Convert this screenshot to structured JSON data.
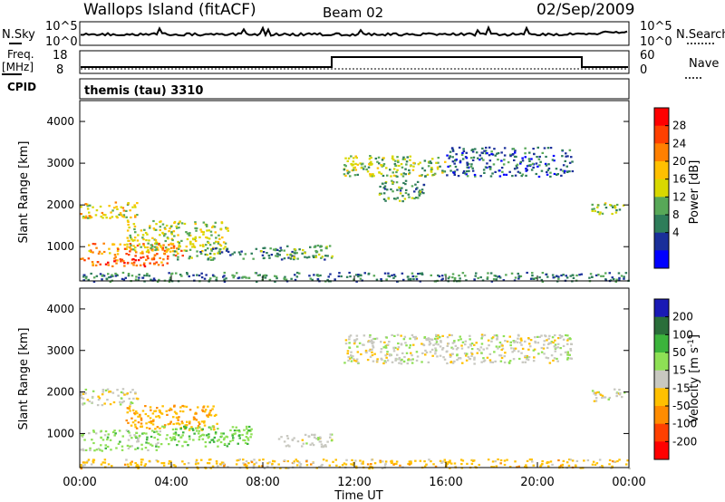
{
  "header": {
    "station": "Wallops Island (fitACF)",
    "beam": "Beam 02",
    "date": "02/Sep/2009"
  },
  "strip_panels": {
    "nsky": {
      "label": "N.Sky",
      "ticks": [
        "10^5",
        "10^0"
      ],
      "right_label": "N.Search",
      "right_ticks": [
        "10^5",
        "10^0"
      ]
    },
    "freq": {
      "label_line1": "Freq.",
      "label_line2": "[MHz]",
      "ticks": [
        "18",
        "8"
      ],
      "right_label": "Nave",
      "right_ticks": [
        "60",
        "0"
      ]
    },
    "cpid": {
      "label": "CPID",
      "program": "themis (tau) 3310"
    }
  },
  "colorbars": {
    "power": {
      "label": "Power [dB]",
      "ticks": [
        "28",
        "24",
        "20",
        "16",
        "12",
        "8",
        "4"
      ],
      "colors": [
        "#ff0000",
        "#ff4000",
        "#ff8000",
        "#ffc000",
        "#d8d800",
        "#58a858",
        "#2e7d5a",
        "#1a2f9a",
        "#0000ff"
      ]
    },
    "velocity": {
      "label_main": "Velocity [m s",
      "label_sup": "-1",
      "label_end": "]",
      "ticks": [
        "200",
        "100",
        "50",
        "15",
        "-15",
        "-50",
        "-100",
        "-200"
      ],
      "colors": [
        "#1a1ab5",
        "#2a6e3a",
        "#3cb43c",
        "#8ee055",
        "#c8c8c0",
        "#ffc000",
        "#ff8c00",
        "#ff4000",
        "#ff0000"
      ]
    }
  },
  "axes": {
    "y_label": "Slant Range [km]",
    "x_label": "Time UT",
    "x_ticks": [
      "00:00",
      "04:00",
      "08:00",
      "12:00",
      "16:00",
      "20:00",
      "00:00"
    ],
    "y_ticks": [
      "4000",
      "3000",
      "2000",
      "1000"
    ]
  },
  "chart_data": [
    {
      "type": "heatmap",
      "title": "Power [dB]",
      "xlabel": "Time UT",
      "ylabel": "Slant Range [km]",
      "xlim": [
        0,
        24
      ],
      "ylim": [
        180,
        4500
      ],
      "clim": [
        0,
        32
      ],
      "regions": [
        {
          "t0": 0.0,
          "t1": 3.9,
          "r0": 550,
          "r1": 800,
          "value": 26
        },
        {
          "t0": 0.3,
          "t1": 4.5,
          "r0": 800,
          "r1": 1100,
          "value": 22
        },
        {
          "t0": 2.0,
          "t1": 6.5,
          "r0": 900,
          "r1": 1650,
          "value": 16
        },
        {
          "t0": 4.0,
          "t1": 9.5,
          "r0": 700,
          "r1": 1000,
          "value": 10
        },
        {
          "t0": 9.0,
          "t1": 11.0,
          "r0": 700,
          "r1": 1050,
          "value": 12
        },
        {
          "t0": 0.0,
          "t1": 2.5,
          "r0": 1700,
          "r1": 2100,
          "value": 18
        },
        {
          "t0": 11.5,
          "t1": 16.0,
          "r0": 2700,
          "r1": 3200,
          "value": 14
        },
        {
          "t0": 13.0,
          "t1": 15.0,
          "r0": 2100,
          "r1": 2600,
          "value": 11
        },
        {
          "t0": 16.0,
          "t1": 21.5,
          "r0": 2700,
          "r1": 3400,
          "value": 7
        },
        {
          "t0": 22.3,
          "t1": 23.8,
          "r0": 1800,
          "r1": 2100,
          "value": 14
        },
        {
          "t0": 0.0,
          "t1": 24.0,
          "r0": 180,
          "r1": 400,
          "value": 9
        }
      ]
    },
    {
      "type": "heatmap",
      "title": "Velocity [m s-1]",
      "xlabel": "Time UT",
      "ylabel": "Slant Range [km]",
      "xlim": [
        0,
        24
      ],
      "ylim": [
        180,
        4500
      ],
      "clim": [
        -250,
        250
      ],
      "regions": [
        {
          "t0": 0.0,
          "t1": 3.5,
          "r0": 600,
          "r1": 1100,
          "value": 30
        },
        {
          "t0": 2.0,
          "t1": 6.0,
          "r0": 1100,
          "r1": 1700,
          "value": -40
        },
        {
          "t0": 3.5,
          "t1": 7.5,
          "r0": 700,
          "r1": 1200,
          "value": 40
        },
        {
          "t0": 8.5,
          "t1": 11.0,
          "r0": 700,
          "r1": 1000,
          "value": 0
        },
        {
          "t0": 0.0,
          "t1": 2.5,
          "r0": 1700,
          "r1": 2100,
          "value": 0
        },
        {
          "t0": 11.5,
          "t1": 21.5,
          "r0": 2700,
          "r1": 3400,
          "value": 0
        },
        {
          "t0": 22.3,
          "t1": 23.8,
          "r0": 1800,
          "r1": 2100,
          "value": 0
        },
        {
          "t0": 0.0,
          "t1": 24.0,
          "r0": 180,
          "r1": 400,
          "value": -30
        }
      ]
    }
  ]
}
